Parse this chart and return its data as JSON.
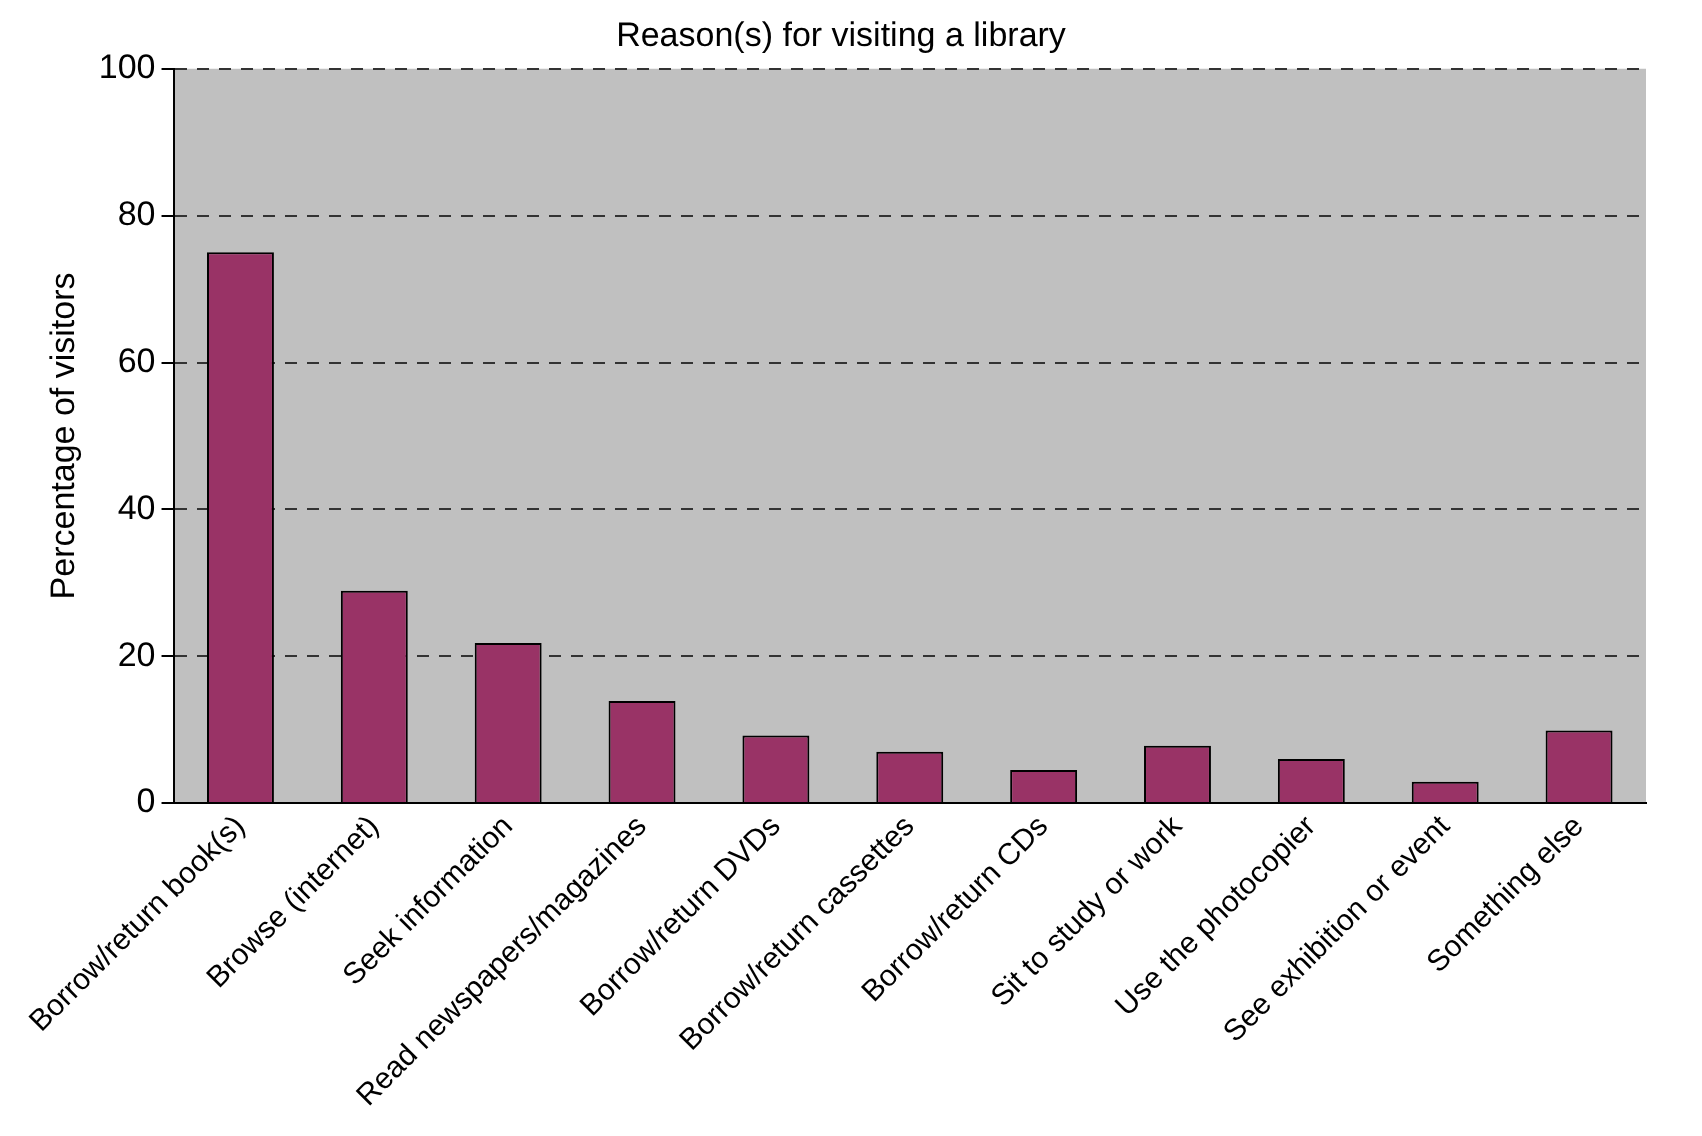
{
  "chart_data": {
    "type": "bar",
    "title": "Reason(s) for visiting a library",
    "ylabel": "Percentage of visitors",
    "categories": [
      "Borrow/return book(s)",
      "Browse (internet)",
      "Seek information",
      "Read newspapers/magazines",
      "Borrow/return DVDs",
      "Borrow/return cassettes",
      "Borrow/return CDs",
      "Sit to study or work",
      "Use the photocopier",
      "See exhibition or event",
      "Something else"
    ],
    "values": [
      75,
      28.9,
      21.8,
      13.9,
      9.2,
      7,
      4.5,
      7.8,
      6,
      2.9,
      9.9
    ],
    "color": "#993366",
    "ylim": [
      0,
      100
    ],
    "yticks": [
      0,
      20,
      40,
      60,
      80,
      100
    ],
    "grid": "y",
    "legend": false
  }
}
